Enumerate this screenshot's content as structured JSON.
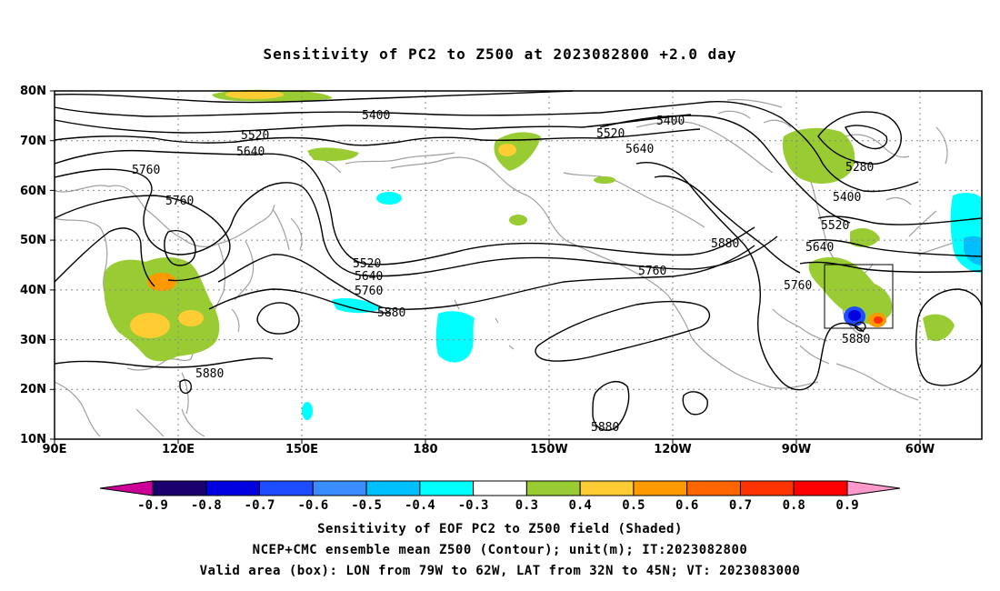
{
  "title": "Sensitivity of PC2 to Z500 at 2023082800 +2.0 day",
  "lat_ticks": [
    "80N",
    "70N",
    "60N",
    "50N",
    "40N",
    "30N",
    "20N",
    "10N"
  ],
  "lon_ticks": [
    "90E",
    "120E",
    "150E",
    "180",
    "150W",
    "120W",
    "90W",
    "60W"
  ],
  "contour_labels": {
    "c5400a": "5400",
    "c5520a": "5520",
    "c5640a": "5640",
    "c5760a": "5760",
    "c5760b": "5760",
    "c5520b": "5520",
    "c5640b": "5640",
    "c5760c": "5760",
    "c5880a": "5880",
    "c5880b": "5880",
    "c5400b": "5400",
    "c5520c": "5520",
    "c5640c": "5640",
    "c5880c": "5880",
    "c5760d": "5760",
    "c5280": "5280",
    "c5400c": "5400",
    "c5520d": "5520",
    "c5640d": "5640",
    "c5760e": "5760",
    "c5880d": "5880",
    "c5880e": "5880"
  },
  "colorbar": {
    "labels": [
      "-0.9",
      "-0.8",
      "-0.7",
      "-0.6",
      "-0.5",
      "-0.4",
      "-0.3",
      "0.3",
      "0.4",
      "0.5",
      "0.6",
      "0.7",
      "0.8",
      "0.9"
    ],
    "colors": [
      "#1a006e",
      "#0000e0",
      "#1e4dff",
      "#3a8cff",
      "#00bfff",
      "#00ffff",
      "#ffffff",
      "#99cc33",
      "#ffcc33",
      "#ff9900",
      "#ff6600",
      "#ff3300",
      "#ff0000"
    ],
    "low_end": "#cc0099",
    "high_end": "#ff99cc"
  },
  "colors": {
    "coast": "#a0a0a0",
    "contour": "#000000",
    "grid": "#888888"
  },
  "captions": {
    "line1": "Sensitivity of EOF PC2 to Z500 field (Shaded)",
    "line2": "NCEP+CMC ensemble mean Z500 (Contour); unit(m); IT:2023082800",
    "line3": "Valid area (box): LON from 79W to 62W, LAT from 32N to 45N; VT: 2023083000"
  }
}
